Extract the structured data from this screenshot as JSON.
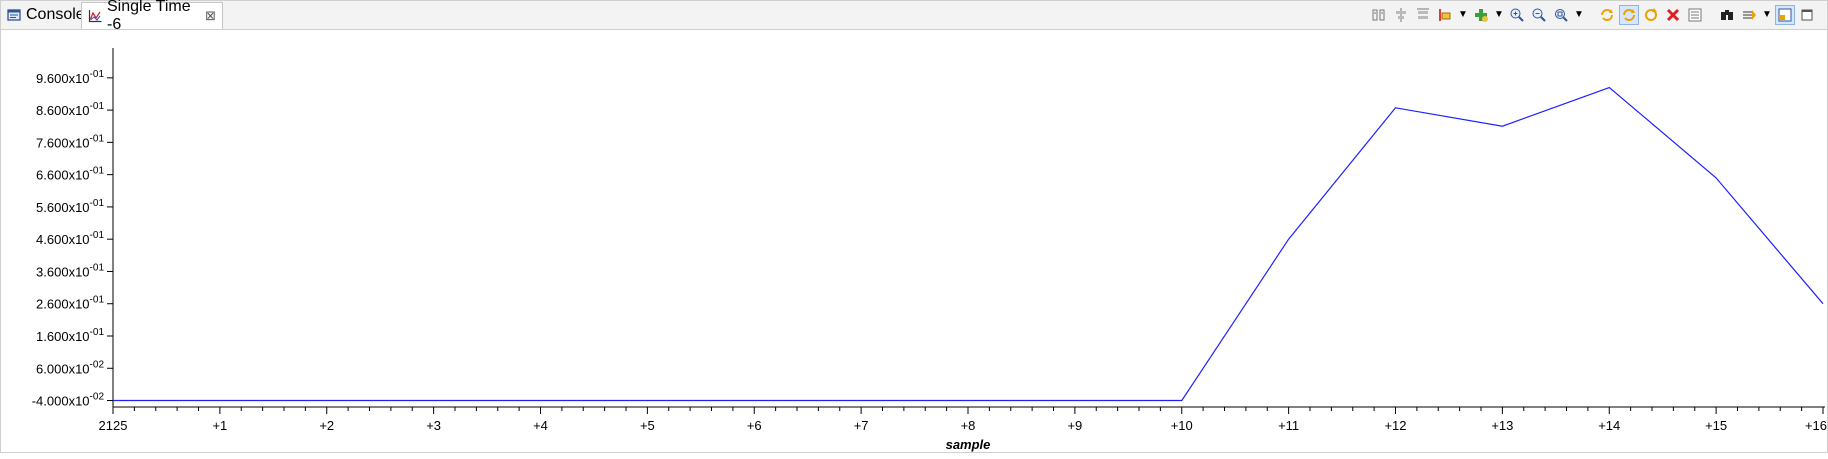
{
  "tabs": [
    {
      "label": "Console",
      "icon": "console-icon"
    },
    {
      "label": "Single Time -6",
      "icon": "chart-icon",
      "close": "⊠"
    }
  ],
  "toolbar": {
    "icons": [
      "columns-icon",
      "align-center-icon",
      "align-top-icon",
      "cursor-icon",
      "dropdown-arrow-icon",
      "add-measure-icon",
      "dropdown-arrow-icon",
      "zoom-in-icon",
      "zoom-out-icon",
      "zoom-fit-icon",
      "dropdown-arrow-icon",
      "refresh-icon",
      "auto-refresh-icon",
      "continuous-refresh-icon",
      "delete-icon",
      "properties-icon",
      "find-icon",
      "export-icon",
      "dropdown-arrow-icon",
      "layout-icon",
      "maximize-icon"
    ],
    "colors": {
      "plot_line": "#1f1fff",
      "axis": "#000000",
      "refresh": "#e8a400",
      "delete": "#e02020"
    }
  },
  "chart_data": {
    "type": "line",
    "xlabel": "sample",
    "x_ticks": [
      "2125",
      "+1",
      "+2",
      "+3",
      "+4",
      "+5",
      "+6",
      "+7",
      "+8",
      "+9",
      "+10",
      "+11",
      "+12",
      "+13",
      "+14",
      "+15",
      "+16"
    ],
    "y_ticks": [
      {
        "mant": "9.600",
        "exp": "-01",
        "v": 0.96
      },
      {
        "mant": "8.600",
        "exp": "-01",
        "v": 0.86
      },
      {
        "mant": "7.600",
        "exp": "-01",
        "v": 0.76
      },
      {
        "mant": "6.600",
        "exp": "-01",
        "v": 0.66
      },
      {
        "mant": "5.600",
        "exp": "-01",
        "v": 0.56
      },
      {
        "mant": "4.600",
        "exp": "-01",
        "v": 0.46
      },
      {
        "mant": "3.600",
        "exp": "-01",
        "v": 0.36
      },
      {
        "mant": "2.600",
        "exp": "-01",
        "v": 0.26
      },
      {
        "mant": "1.600",
        "exp": "-01",
        "v": 0.16
      },
      {
        "mant": "6.000",
        "exp": "-02",
        "v": 0.06
      },
      {
        "mant": "-4.000",
        "exp": "-02",
        "v": -0.04
      }
    ],
    "ylim": [
      -0.06,
      1.04
    ],
    "xlim": [
      0,
      16
    ],
    "series": [
      {
        "x": [
          0,
          1,
          2,
          3,
          4,
          5,
          6,
          7,
          8,
          9,
          10,
          11,
          12,
          13,
          14,
          15,
          16
        ],
        "values": [
          -0.04,
          -0.04,
          -0.04,
          -0.04,
          -0.04,
          -0.04,
          -0.04,
          -0.04,
          -0.04,
          -0.04,
          -0.04,
          0.46,
          0.867,
          0.81,
          0.93,
          0.65,
          0.26
        ]
      }
    ],
    "grid": false
  }
}
